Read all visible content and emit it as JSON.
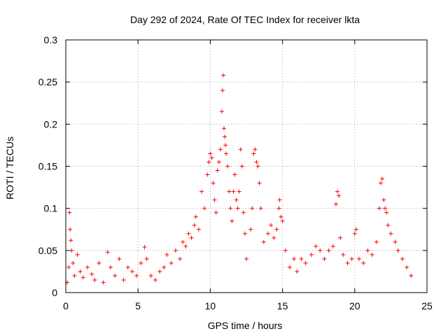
{
  "chart_data": {
    "type": "scatter",
    "title": "Day 292 of 2024, Rate Of TEC Index for receiver lkta",
    "xlabel": "GPS time / hours",
    "ylabel": "ROTI / TECUs",
    "xlim": [
      0,
      25
    ],
    "ylim": [
      0,
      0.3
    ],
    "xticks": [
      0,
      5,
      10,
      15,
      20,
      25
    ],
    "yticks": [
      0,
      0.05,
      0.1,
      0.15,
      0.2,
      0.25,
      0.3
    ],
    "xtick_labels": [
      "0",
      "5",
      "10",
      "15",
      "20",
      "25"
    ],
    "ytick_labels": [
      "0",
      "0.05",
      "0.1",
      "0.15",
      "0.2",
      "0.25",
      "0.3"
    ],
    "grid": true,
    "marker": "+",
    "color": "#ff0000",
    "series": [
      {
        "name": "ROTI",
        "points": [
          [
            0.1,
            0.012
          ],
          [
            0.2,
            0.03
          ],
          [
            0.25,
            0.095
          ],
          [
            0.3,
            0.075
          ],
          [
            0.35,
            0.062
          ],
          [
            0.4,
            0.05
          ],
          [
            0.5,
            0.035
          ],
          [
            0.6,
            0.02
          ],
          [
            0.8,
            0.045
          ],
          [
            1.0,
            0.025
          ],
          [
            1.2,
            0.018
          ],
          [
            1.5,
            0.03
          ],
          [
            1.8,
            0.022
          ],
          [
            2.0,
            0.015
          ],
          [
            2.3,
            0.035
          ],
          [
            2.6,
            0.012
          ],
          [
            2.9,
            0.048
          ],
          [
            3.1,
            0.03
          ],
          [
            3.4,
            0.02
          ],
          [
            3.7,
            0.04
          ],
          [
            4.0,
            0.015
          ],
          [
            4.3,
            0.03
          ],
          [
            4.6,
            0.025
          ],
          [
            4.9,
            0.02
          ],
          [
            5.2,
            0.035
          ],
          [
            5.45,
            0.054
          ],
          [
            5.6,
            0.04
          ],
          [
            5.9,
            0.02
          ],
          [
            6.2,
            0.015
          ],
          [
            6.5,
            0.025
          ],
          [
            6.8,
            0.03
          ],
          [
            7.0,
            0.045
          ],
          [
            7.3,
            0.035
          ],
          [
            7.6,
            0.05
          ],
          [
            7.9,
            0.04
          ],
          [
            8.1,
            0.06
          ],
          [
            8.3,
            0.055
          ],
          [
            8.5,
            0.07
          ],
          [
            8.7,
            0.065
          ],
          [
            8.9,
            0.08
          ],
          [
            9.0,
            0.09
          ],
          [
            9.2,
            0.075
          ],
          [
            9.4,
            0.12
          ],
          [
            9.6,
            0.1
          ],
          [
            9.8,
            0.14
          ],
          [
            9.9,
            0.155
          ],
          [
            10.0,
            0.165
          ],
          [
            10.1,
            0.16
          ],
          [
            10.2,
            0.13
          ],
          [
            10.3,
            0.11
          ],
          [
            10.4,
            0.095
          ],
          [
            10.5,
            0.145
          ],
          [
            10.6,
            0.155
          ],
          [
            10.7,
            0.17
          ],
          [
            10.8,
            0.215
          ],
          [
            10.85,
            0.24
          ],
          [
            10.9,
            0.258
          ],
          [
            10.95,
            0.195
          ],
          [
            11.0,
            0.185
          ],
          [
            11.05,
            0.175
          ],
          [
            11.1,
            0.165
          ],
          [
            11.2,
            0.15
          ],
          [
            11.3,
            0.12
          ],
          [
            11.4,
            0.1
          ],
          [
            11.5,
            0.085
          ],
          [
            11.6,
            0.12
          ],
          [
            11.7,
            0.14
          ],
          [
            11.8,
            0.11
          ],
          [
            11.9,
            0.1
          ],
          [
            12.0,
            0.12
          ],
          [
            12.1,
            0.17
          ],
          [
            12.2,
            0.15
          ],
          [
            12.3,
            0.095
          ],
          [
            12.4,
            0.07
          ],
          [
            12.5,
            0.04
          ],
          [
            12.8,
            0.075
          ],
          [
            12.9,
            0.1
          ],
          [
            13.0,
            0.165
          ],
          [
            13.1,
            0.17
          ],
          [
            13.2,
            0.155
          ],
          [
            13.3,
            0.15
          ],
          [
            13.4,
            0.13
          ],
          [
            13.5,
            0.1
          ],
          [
            13.7,
            0.06
          ],
          [
            14.0,
            0.07
          ],
          [
            14.2,
            0.08
          ],
          [
            14.4,
            0.065
          ],
          [
            14.6,
            0.075
          ],
          [
            14.75,
            0.1
          ],
          [
            14.8,
            0.11
          ],
          [
            14.9,
            0.09
          ],
          [
            15.0,
            0.085
          ],
          [
            15.2,
            0.05
          ],
          [
            15.5,
            0.03
          ],
          [
            15.8,
            0.04
          ],
          [
            16.0,
            0.025
          ],
          [
            16.3,
            0.04
          ],
          [
            16.6,
            0.035
          ],
          [
            17.0,
            0.045
          ],
          [
            17.3,
            0.055
          ],
          [
            17.6,
            0.05
          ],
          [
            17.9,
            0.04
          ],
          [
            18.2,
            0.05
          ],
          [
            18.5,
            0.055
          ],
          [
            18.7,
            0.105
          ],
          [
            18.8,
            0.12
          ],
          [
            18.9,
            0.115
          ],
          [
            19.0,
            0.065
          ],
          [
            19.2,
            0.045
          ],
          [
            19.5,
            0.035
          ],
          [
            19.8,
            0.04
          ],
          [
            20.0,
            0.07
          ],
          [
            20.1,
            0.075
          ],
          [
            20.3,
            0.04
          ],
          [
            20.6,
            0.035
          ],
          [
            20.9,
            0.05
          ],
          [
            21.2,
            0.045
          ],
          [
            21.5,
            0.06
          ],
          [
            21.7,
            0.1
          ],
          [
            21.8,
            0.13
          ],
          [
            21.9,
            0.135
          ],
          [
            22.0,
            0.11
          ],
          [
            22.1,
            0.1
          ],
          [
            22.2,
            0.095
          ],
          [
            22.3,
            0.08
          ],
          [
            22.5,
            0.07
          ],
          [
            22.8,
            0.06
          ],
          [
            23.0,
            0.05
          ],
          [
            23.3,
            0.04
          ],
          [
            23.6,
            0.03
          ],
          [
            23.9,
            0.02
          ]
        ]
      }
    ]
  }
}
